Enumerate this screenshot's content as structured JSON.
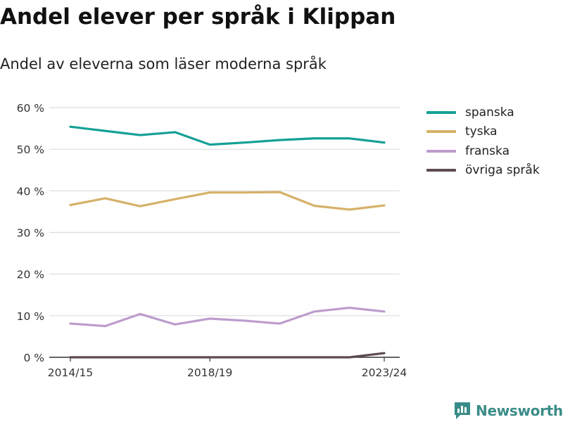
{
  "title": "Andel elever per språk i Klippan",
  "subtitle": "Andel av eleverna som läser moderna språk",
  "brand": {
    "name": "Newsworthy",
    "color": "#3a8c88",
    "icon": "newsworthy-logo-icon"
  },
  "chart_data": {
    "type": "line",
    "title": "Andel elever per språk i Klippan",
    "subtitle": "Andel av eleverna som läser moderna språk",
    "x": [
      "2014/15",
      "2015/16",
      "2016/17",
      "2017/18",
      "2018/19",
      "2019/20",
      "2020/21",
      "2021/22",
      "2022/23",
      "2023/24"
    ],
    "x_tick_labels": [
      "2014/15",
      "2018/19",
      "2023/24"
    ],
    "y_ticks": [
      0,
      10,
      20,
      30,
      40,
      50,
      60
    ],
    "y_tick_suffix": " %",
    "ylim": [
      0,
      60
    ],
    "grid": true,
    "legend_position": "right",
    "series": [
      {
        "name": "spanska",
        "color": "#14a096",
        "values": [
          55.4,
          54.4,
          53.4,
          54.1,
          51.1,
          51.6,
          52.2,
          52.6,
          52.6,
          51.6
        ]
      },
      {
        "name": "tyska",
        "color": "#d6b168",
        "values": [
          36.6,
          38.2,
          36.3,
          38.0,
          39.6,
          39.6,
          39.7,
          36.4,
          35.5,
          36.5
        ]
      },
      {
        "name": "franska",
        "color": "#bd9ccc",
        "values": [
          8.1,
          7.5,
          10.4,
          7.9,
          9.3,
          8.8,
          8.1,
          11.0,
          11.9,
          11.0
        ]
      },
      {
        "name": "övriga språk",
        "color": "#5d4a54",
        "values": [
          0,
          0,
          0,
          0,
          0,
          0,
          0,
          0,
          0,
          1.0
        ]
      }
    ]
  }
}
